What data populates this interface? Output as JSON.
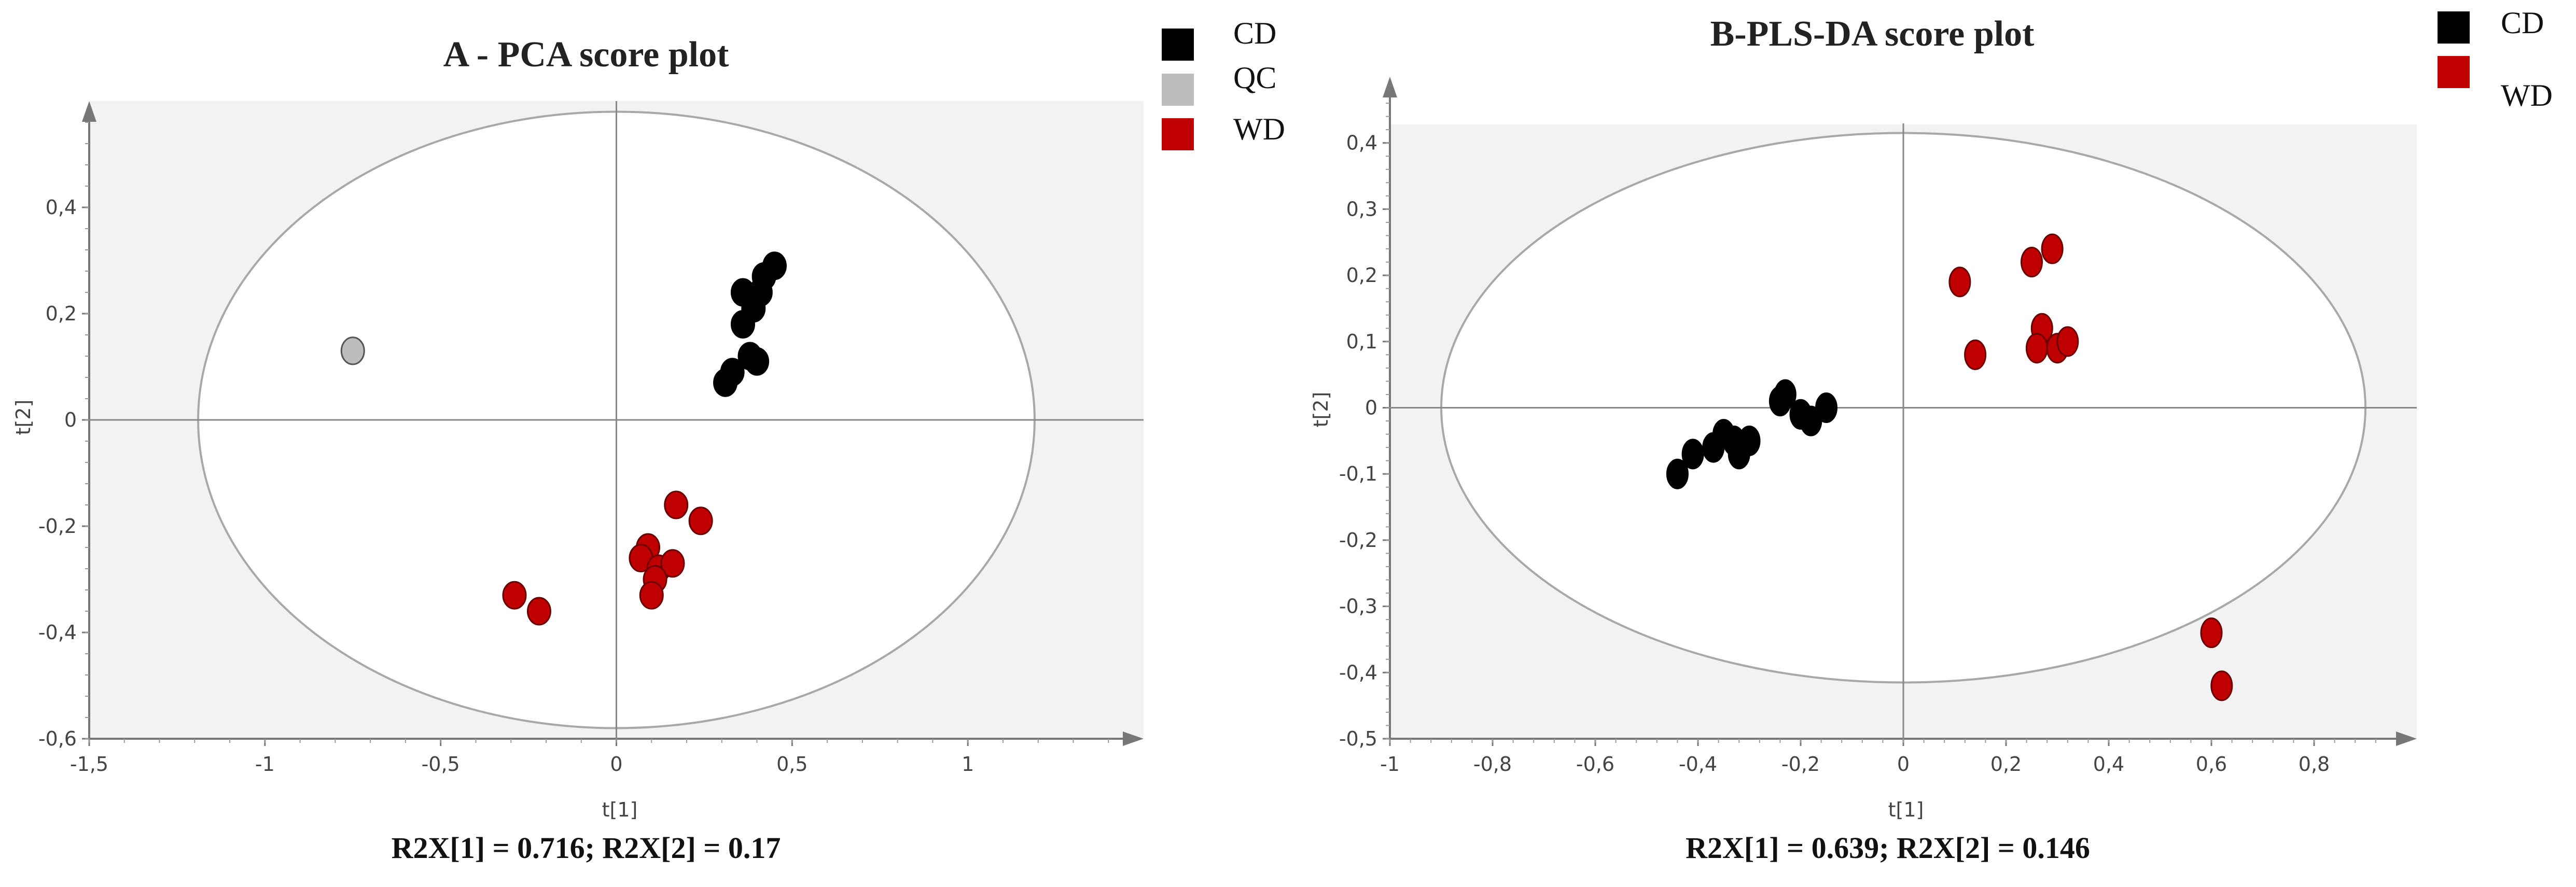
{
  "legend_colors": {
    "CD": "#000000",
    "QC": "#bdbdbd",
    "WD": "#c00000"
  },
  "plot_background": "#f2f2f2",
  "chart_data": [
    {
      "id": "A",
      "type": "scatter",
      "title": "A - PCA score plot",
      "xlabel": "t[1]",
      "ylabel": "t[2]",
      "xlim": [
        -1.5,
        1.5
      ],
      "ylim": [
        -0.6,
        0.6
      ],
      "xticks": [
        -1.5,
        -1,
        -0.5,
        0,
        0.5,
        1
      ],
      "xtick_labels": [
        "-1,5",
        "-1",
        "-0,5",
        "0",
        "0,5",
        "1"
      ],
      "yticks": [
        -0.6,
        -0.4,
        -0.2,
        0,
        0.2,
        0.4
      ],
      "ytick_labels": [
        "-0,6",
        "-0,4",
        "-0,2",
        "0",
        "0,2",
        "0,4"
      ],
      "ellipse": {
        "rx": 1.19,
        "ry": 0.58
      },
      "footer": "R2X[1] = 0.716; R2X[2] = 0.17",
      "legend_position": "top-right",
      "legend": [
        "CD",
        "QC",
        "WD"
      ],
      "series": [
        {
          "name": "CD",
          "color": "#000000",
          "points": [
            [
              0.36,
              0.24
            ],
            [
              0.41,
              0.24
            ],
            [
              0.39,
              0.21
            ],
            [
              0.42,
              0.27
            ],
            [
              0.45,
              0.29
            ],
            [
              0.36,
              0.18
            ],
            [
              0.38,
              0.12
            ],
            [
              0.4,
              0.11
            ],
            [
              0.33,
              0.09
            ],
            [
              0.31,
              0.07
            ]
          ]
        },
        {
          "name": "QC",
          "color": "#bdbdbd",
          "points": [
            [
              -0.75,
              0.13
            ]
          ]
        },
        {
          "name": "WD",
          "color": "#c00000",
          "points": [
            [
              0.17,
              -0.16
            ],
            [
              0.24,
              -0.19
            ],
            [
              0.09,
              -0.24
            ],
            [
              0.07,
              -0.26
            ],
            [
              0.12,
              -0.28
            ],
            [
              0.16,
              -0.27
            ],
            [
              0.11,
              -0.3
            ],
            [
              0.1,
              -0.33
            ],
            [
              -0.29,
              -0.33
            ],
            [
              -0.22,
              -0.36
            ]
          ]
        }
      ]
    },
    {
      "id": "B",
      "type": "scatter",
      "title": "B-PLS-DA score plot",
      "xlabel": "t[1]",
      "ylabel": "t[2]",
      "xlim": [
        -1,
        1
      ],
      "ylim": [
        -0.5,
        0.5
      ],
      "xticks": [
        -1,
        -0.8,
        -0.6,
        -0.4,
        -0.2,
        0,
        0.2,
        0.4,
        0.6,
        0.8
      ],
      "xtick_labels": [
        "-1",
        "-0,8",
        "-0,6",
        "-0,4",
        "-0,2",
        "0",
        "0,2",
        "0,4",
        "0,6",
        "0,8"
      ],
      "yticks": [
        -0.5,
        -0.4,
        -0.3,
        -0.2,
        -0.1,
        0,
        0.1,
        0.2,
        0.3,
        0.4
      ],
      "ytick_labels": [
        "-0,5",
        "-0,4",
        "-0,3",
        "-0,2",
        "-0,1",
        "0",
        "0,1",
        "0,2",
        "0,3",
        "0,4"
      ],
      "ellipse": {
        "rx": 0.9,
        "ry": 0.415
      },
      "footer": "R2X[1] = 0.639; R2X[2] = 0.146",
      "legend_position": "top-right",
      "legend": [
        "CD",
        "WD"
      ],
      "series": [
        {
          "name": "CD",
          "color": "#000000",
          "points": [
            [
              -0.44,
              -0.1
            ],
            [
              -0.41,
              -0.07
            ],
            [
              -0.37,
              -0.06
            ],
            [
              -0.35,
              -0.04
            ],
            [
              -0.33,
              -0.05
            ],
            [
              -0.32,
              -0.07
            ],
            [
              -0.3,
              -0.05
            ],
            [
              -0.24,
              0.01
            ],
            [
              -0.23,
              0.02
            ],
            [
              -0.2,
              -0.01
            ],
            [
              -0.18,
              -0.02
            ],
            [
              -0.15,
              0
            ]
          ]
        },
        {
          "name": "WD",
          "color": "#c00000",
          "points": [
            [
              0.11,
              0.19
            ],
            [
              0.25,
              0.22
            ],
            [
              0.29,
              0.24
            ],
            [
              0.14,
              0.08
            ],
            [
              0.27,
              0.12
            ],
            [
              0.26,
              0.09
            ],
            [
              0.3,
              0.09
            ],
            [
              0.32,
              0.1
            ],
            [
              0.6,
              -0.34
            ],
            [
              0.62,
              -0.42
            ]
          ]
        }
      ]
    }
  ]
}
